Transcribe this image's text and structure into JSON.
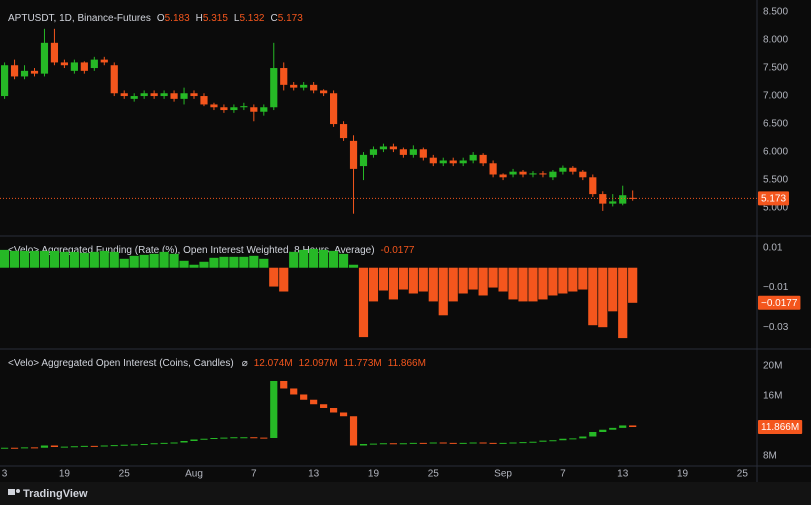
{
  "x_axis": {
    "x": [
      13,
      14,
      15,
      16,
      17,
      18,
      19,
      20,
      21,
      22,
      23,
      24,
      25,
      26,
      27,
      28,
      29,
      30,
      31,
      32,
      33,
      34,
      35,
      36,
      37,
      38,
      39,
      40,
      41,
      42,
      43,
      44,
      45,
      46,
      47,
      48,
      49,
      50,
      51,
      52,
      53,
      54,
      55,
      56,
      57,
      58,
      59,
      60,
      61,
      62,
      63,
      64,
      65,
      66,
      67,
      68,
      69,
      70,
      71,
      72,
      73,
      74,
      75,
      76
    ],
    "xlim": [
      12.54,
      88.47
    ],
    "xticks": [
      {
        "value": 13,
        "label": "3"
      },
      19,
      25,
      {
        "value": 32,
        "label": "Aug"
      },
      {
        "value": 38,
        "label": "7"
      },
      {
        "value": 44,
        "label": "13"
      },
      {
        "value": 50,
        "label": "19"
      },
      {
        "value": 56,
        "label": "25"
      },
      {
        "value": 63,
        "label": "Sep"
      },
      {
        "value": 69,
        "label": "7"
      },
      {
        "value": 75,
        "label": "13"
      },
      {
        "value": 81,
        "label": "19"
      },
      {
        "value": 87,
        "label": "25"
      }
    ]
  },
  "chart_data": [
    {
      "type": "candlestick",
      "title": "APTUSDT, 1D, Binance-Futures",
      "legend": [
        {
          "label": "O",
          "value": "5.183"
        },
        {
          "label": "H",
          "value": "5.315"
        },
        {
          "label": "L",
          "value": "5.132"
        },
        {
          "label": "C",
          "value": "5.173"
        }
      ],
      "open": [
        7.0,
        7.55,
        7.35,
        7.45,
        7.4,
        7.95,
        7.6,
        7.45,
        7.6,
        7.5,
        7.65,
        7.55,
        7.05,
        6.95,
        7.0,
        7.05,
        7.0,
        7.05,
        6.95,
        7.05,
        7.0,
        6.85,
        6.8,
        6.75,
        6.8,
        6.8,
        6.72,
        6.8,
        7.5,
        7.2,
        7.15,
        7.2,
        7.1,
        7.05,
        6.5,
        6.2,
        5.75,
        5.95,
        6.05,
        6.1,
        6.05,
        5.95,
        6.05,
        5.9,
        5.8,
        5.85,
        5.8,
        5.85,
        5.95,
        5.8,
        5.6,
        5.6,
        5.65,
        5.6,
        5.62,
        5.55,
        5.65,
        5.72,
        5.65,
        5.55,
        5.25,
        5.08,
        5.08,
        5.183
      ],
      "high": [
        7.6,
        7.65,
        7.55,
        7.5,
        8.2,
        8.2,
        7.65,
        7.65,
        7.62,
        7.7,
        7.7,
        7.6,
        7.1,
        7.05,
        7.1,
        7.1,
        7.1,
        7.1,
        7.15,
        7.1,
        7.05,
        6.88,
        6.85,
        6.85,
        6.88,
        6.85,
        6.85,
        7.95,
        7.6,
        7.25,
        7.25,
        7.25,
        7.12,
        7.1,
        6.55,
        6.3,
        6.0,
        6.1,
        6.15,
        6.15,
        6.08,
        6.12,
        6.08,
        5.95,
        5.9,
        5.9,
        5.9,
        6.0,
        5.98,
        5.85,
        5.62,
        5.7,
        5.68,
        5.66,
        5.66,
        5.68,
        5.76,
        5.75,
        5.68,
        5.6,
        5.3,
        5.25,
        5.4,
        5.315
      ],
      "low": [
        6.95,
        7.3,
        7.3,
        7.35,
        7.35,
        7.55,
        7.5,
        7.4,
        7.4,
        7.45,
        7.55,
        7.0,
        6.95,
        6.9,
        6.95,
        6.95,
        6.95,
        6.9,
        6.85,
        6.95,
        6.82,
        6.75,
        6.7,
        6.7,
        6.75,
        6.55,
        6.65,
        6.75,
        7.1,
        7.1,
        7.1,
        7.05,
        7.0,
        6.45,
        6.2,
        4.9,
        5.5,
        5.9,
        6.0,
        6.0,
        5.9,
        5.9,
        5.85,
        5.75,
        5.75,
        5.75,
        5.75,
        5.8,
        5.75,
        5.55,
        5.5,
        5.55,
        5.55,
        5.55,
        5.55,
        5.5,
        5.6,
        5.6,
        5.5,
        5.2,
        4.95,
        5.03,
        5.05,
        5.132
      ],
      "close": [
        7.55,
        7.35,
        7.45,
        7.4,
        7.95,
        7.6,
        7.55,
        7.6,
        7.45,
        7.65,
        7.6,
        7.05,
        7.0,
        7.0,
        7.05,
        7.0,
        7.05,
        6.95,
        7.05,
        7.0,
        6.85,
        6.8,
        6.75,
        6.8,
        6.82,
        6.72,
        6.8,
        7.5,
        7.2,
        7.15,
        7.2,
        7.1,
        7.05,
        6.5,
        6.25,
        5.7,
        5.95,
        6.05,
        6.1,
        6.05,
        5.95,
        6.05,
        5.9,
        5.8,
        5.85,
        5.8,
        5.85,
        5.95,
        5.8,
        5.6,
        5.55,
        5.65,
        5.6,
        5.62,
        5.6,
        5.65,
        5.72,
        5.65,
        5.55,
        5.25,
        5.08,
        5.12,
        5.23,
        5.173
      ],
      "up_color": "#26b926",
      "down_color": "#f4561d",
      "ylim": [
        4.52,
        8.625
      ],
      "yticks": [
        {
          "value": 8.5,
          "label": "8.500"
        },
        {
          "value": 8,
          "label": "8.000"
        },
        {
          "value": 7.5,
          "label": "7.500"
        },
        {
          "value": 7,
          "label": "7.000"
        },
        {
          "value": 6.5,
          "label": "6.500"
        },
        {
          "value": 6,
          "label": "6.000"
        },
        {
          "value": 5.5,
          "label": "5.500"
        },
        {
          "value": 5,
          "label": "5.000"
        }
      ],
      "last_label": "5.173",
      "last_line": true
    },
    {
      "type": "bar",
      "title": "<Velo> Aggregated Funding (Rate (%), Open Interest Weighted, 8 Hours, Average)",
      "legend": [
        {
          "value": "-0.0177"
        }
      ],
      "values": [
        0.009,
        0.0085,
        0.0085,
        0.0085,
        0.0085,
        0.0085,
        0.008,
        0.008,
        0.0075,
        0.008,
        0.0085,
        0.008,
        0.0045,
        0.006,
        0.0065,
        0.007,
        0.008,
        0.007,
        0.0035,
        0.0015,
        0.003,
        0.005,
        0.0055,
        0.0055,
        0.0055,
        0.006,
        0.0045,
        -0.0095,
        -0.012,
        0.008,
        0.009,
        0.0095,
        0.009,
        0.0085,
        0.007,
        0.0015,
        -0.035,
        -0.017,
        -0.0115,
        -0.016,
        -0.011,
        -0.013,
        -0.012,
        -0.017,
        -0.024,
        -0.017,
        -0.013,
        -0.011,
        -0.014,
        -0.01,
        -0.012,
        -0.016,
        -0.017,
        -0.017,
        -0.016,
        -0.014,
        -0.013,
        -0.012,
        -0.011,
        -0.029,
        -0.03,
        -0.022,
        -0.0355,
        -0.0177
      ],
      "up_color": "#26b926",
      "down_color": "#f4561d",
      "ylim": [
        -0.0405,
        0.0155
      ],
      "yticks": [
        0.01,
        {
          "value": -0.01,
          "label": "−0.01"
        },
        {
          "value": -0.03,
          "label": "−0.03"
        }
      ],
      "last_label": "−0.0177",
      "last_line": false
    },
    {
      "type": "candlestick",
      "title": "<Velo> Aggregated Open Interest (Coins, Candles)",
      "legend_prefix": "⌀",
      "legend": [
        {
          "value": "12.074M"
        },
        {
          "value": "12.097M"
        },
        {
          "value": "11.773M"
        },
        {
          "value": "11.866M"
        }
      ],
      "open": [
        9.0,
        9.1,
        9.05,
        9.15,
        9.1,
        9.4,
        9.2,
        9.25,
        9.3,
        9.35,
        9.3,
        9.4,
        9.45,
        9.5,
        9.55,
        9.6,
        9.7,
        9.75,
        9.8,
        10.0,
        10.2,
        10.3,
        10.4,
        10.45,
        10.5,
        10.5,
        10.45,
        10.4,
        18.0,
        17.0,
        16.2,
        15.5,
        14.9,
        14.4,
        13.8,
        13.3,
        9.4,
        9.6,
        9.65,
        9.7,
        9.65,
        9.7,
        9.75,
        9.7,
        9.8,
        9.75,
        9.7,
        9.75,
        9.8,
        9.75,
        9.7,
        9.75,
        9.8,
        9.85,
        9.9,
        10.05,
        10.1,
        10.3,
        10.35,
        10.6,
        11.2,
        11.5,
        11.75,
        12.074
      ],
      "close": [
        9.1,
        9.05,
        9.15,
        9.1,
        9.4,
        9.2,
        9.25,
        9.3,
        9.35,
        9.3,
        9.4,
        9.45,
        9.5,
        9.55,
        9.6,
        9.7,
        9.75,
        9.8,
        10.0,
        10.2,
        10.3,
        10.4,
        10.45,
        10.5,
        10.5,
        10.45,
        10.4,
        18.0,
        17.0,
        16.2,
        15.5,
        14.9,
        14.4,
        13.8,
        13.3,
        9.4,
        9.6,
        9.65,
        9.7,
        9.65,
        9.7,
        9.75,
        9.7,
        9.8,
        9.75,
        9.7,
        9.75,
        9.8,
        9.75,
        9.7,
        9.75,
        9.8,
        9.85,
        9.9,
        10.05,
        10.1,
        10.3,
        10.35,
        10.6,
        11.2,
        11.5,
        11.75,
        12.074,
        11.866
      ],
      "up_color": "#26b926",
      "down_color": "#f4561d",
      "ylim": [
        6.8,
        22.13
      ],
      "yticks": [
        {
          "value": 20,
          "label": "20M"
        },
        {
          "value": 16,
          "label": "16M"
        },
        {
          "value": 8,
          "label": "8M"
        }
      ],
      "last_label": "11.866M",
      "last_line": false
    }
  ],
  "footer": {
    "brand": "TradingView"
  }
}
